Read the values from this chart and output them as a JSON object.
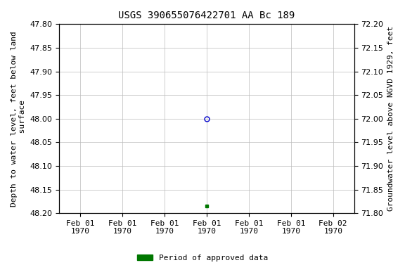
{
  "title": "USGS 390655076422701 AA Bc 189",
  "ylabel_left": "Depth to water level, feet below land\n surface",
  "ylabel_right": "Groundwater level above NGVD 1929, feet",
  "ylim_left": [
    47.8,
    48.2
  ],
  "ylim_right": [
    71.8,
    72.2
  ],
  "yticks_left": [
    47.8,
    47.85,
    47.9,
    47.95,
    48.0,
    48.05,
    48.1,
    48.15,
    48.2
  ],
  "yticks_right": [
    71.8,
    71.85,
    71.9,
    71.95,
    72.0,
    72.05,
    72.1,
    72.15,
    72.2
  ],
  "xtick_positions": [
    0,
    1,
    2,
    3,
    4,
    5,
    6
  ],
  "xtick_labels": [
    "Feb 01\n1970",
    "Feb 01\n1970",
    "Feb 01\n1970",
    "Feb 01\n1970",
    "Feb 01\n1970",
    "Feb 01\n1970",
    "Feb 02\n1970"
  ],
  "xlim": [
    -0.5,
    6.5
  ],
  "point_open_x": 3,
  "point_open_y": 48.0,
  "point_open_color": "#0000cc",
  "point_filled_x": 3,
  "point_filled_y": 48.185,
  "point_filled_color": "#007700",
  "legend_label": "Period of approved data",
  "legend_color": "#007700",
  "bg_color": "#ffffff",
  "grid_color": "#bbbbbb",
  "title_fontsize": 10,
  "label_fontsize": 8,
  "tick_fontsize": 8,
  "font_family": "monospace"
}
